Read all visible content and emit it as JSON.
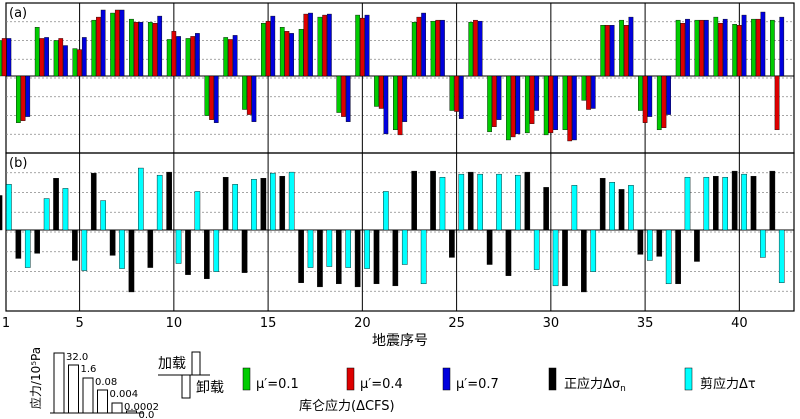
{
  "chart_data": [
    {
      "panel_label": "(a)",
      "type": "bar",
      "x": [
        1,
        2,
        3,
        4,
        5,
        6,
        7,
        8,
        9,
        10,
        11,
        12,
        13,
        14,
        15,
        16,
        17,
        18,
        19,
        20,
        21,
        22,
        23,
        24,
        25,
        26,
        27,
        28,
        29,
        30,
        31,
        32,
        33,
        34,
        35,
        36,
        37,
        38,
        39,
        40,
        41,
        42
      ],
      "series": [
        {
          "name": "μ′=0.1",
          "color": "#00cc00",
          "values": [
            3.5,
            -4.6,
            4.8,
            3.5,
            2.7,
            5.5,
            6.2,
            5.6,
            5.3,
            3.6,
            3.7,
            -3.9,
            3.8,
            -3.3,
            5.2,
            4.8,
            4.6,
            5.8,
            -3.6,
            6.0,
            -3.0,
            -5.3,
            5.3,
            5.4,
            -3.4,
            5.3,
            -5.5,
            -6.3,
            -5.6,
            -5.8,
            -5.3,
            -2.4,
            5.0,
            5.5,
            -3.4,
            -5.3,
            5.5,
            5.5,
            5.8,
            5.1,
            5.6,
            5.5
          ]
        },
        {
          "name": "μ′=0.4",
          "color": "#dd0000",
          "values": [
            3.7,
            -4.4,
            3.7,
            3.7,
            2.6,
            5.8,
            6.5,
            5.3,
            5.2,
            4.4,
            3.9,
            -4.3,
            3.6,
            -3.8,
            5.4,
            4.4,
            6.1,
            6.0,
            -4.0,
            5.7,
            -3.2,
            -5.8,
            5.8,
            5.5,
            -3.5,
            5.5,
            -5.0,
            -6.0,
            -4.7,
            -5.6,
            -6.4,
            -3.3,
            5.0,
            5.0,
            -4.6,
            -5.1,
            5.2,
            5.5,
            5.2,
            5.0,
            5.6,
            -5.3
          ]
        },
        {
          "name": "μ′=0.7",
          "color": "#0000dd",
          "values": [
            3.7,
            -4.0,
            3.8,
            3.0,
            3.8,
            6.5,
            6.5,
            5.3,
            5.9,
            3.9,
            4.2,
            -4.6,
            4.0,
            -4.5,
            5.9,
            4.2,
            6.2,
            6.1,
            -4.5,
            6.0,
            -5.7,
            -4.5,
            6.2,
            5.5,
            -4.2,
            5.4,
            -4.3,
            -5.7,
            -3.4,
            -5.3,
            -6.3,
            -3.2,
            5.0,
            5.8,
            -4.0,
            -3.8,
            5.6,
            5.5,
            5.6,
            6.0,
            6.3,
            5.8
          ]
        }
      ]
    },
    {
      "panel_label": "(b)",
      "type": "bar",
      "x": [
        1,
        2,
        3,
        4,
        5,
        6,
        7,
        8,
        9,
        10,
        11,
        12,
        13,
        14,
        15,
        16,
        17,
        18,
        19,
        20,
        21,
        22,
        23,
        24,
        25,
        26,
        27,
        28,
        29,
        30,
        31,
        32,
        33,
        34,
        35,
        36,
        37,
        38,
        39,
        40,
        41,
        42
      ],
      "series": [
        {
          "name": "正应力Δσn",
          "color": "#000000",
          "values": [
            3.4,
            -2.8,
            -2.3,
            5.1,
            -3.0,
            5.6,
            -2.5,
            -6.1,
            -3.7,
            5.7,
            -4.4,
            -4.8,
            5.2,
            -4.2,
            5.1,
            5.3,
            -5.2,
            -5.6,
            -5.3,
            -5.6,
            -5.3,
            -5.5,
            5.8,
            5.8,
            -2.7,
            5.7,
            -3.4,
            -4.5,
            5.7,
            4.2,
            -5.5,
            -6.1,
            5.1,
            4.0,
            -2.4,
            -2.6,
            -5.3,
            -3.1,
            5.3,
            5.8,
            5.3,
            5.8
          ]
        },
        {
          "name": "剪应力Δτ",
          "color": "#00ffff",
          "values": [
            4.5,
            -3.7,
            3.1,
            4.1,
            -4.0,
            2.9,
            -3.8,
            6.1,
            5.4,
            -3.3,
            3.8,
            -4.1,
            4.5,
            5.0,
            5.6,
            5.7,
            -3.7,
            -3.6,
            -3.7,
            -3.8,
            3.8,
            -3.4,
            -5.3,
            5.2,
            5.5,
            5.5,
            5.5,
            5.4,
            -3.9,
            -5.5,
            4.4,
            -4.1,
            4.7,
            4.4,
            -3.0,
            -5.3,
            5.2,
            5.2,
            5.2,
            5.5,
            -2.7,
            -5.2
          ]
        }
      ]
    }
  ],
  "x_ticks": [
    "1",
    "5",
    "10",
    "15",
    "20",
    "25",
    "30",
    "35",
    "40"
  ],
  "xlabel": "地震序号",
  "legend": {
    "stress_axis_label": "应力/10⁵Pa",
    "stress_scale_labels": [
      "32.0",
      "1.6",
      "0.08",
      "0.004",
      "0.0002",
      "0.0"
    ],
    "load_label": "加载",
    "unload_label": "卸载",
    "mu01": "μ′=0.1",
    "mu04": "μ′=0.4",
    "mu07": "μ′=0.7",
    "normal_stress": "正应力Δσ",
    "normal_sub": "n",
    "shear_stress": "剪应力Δτ",
    "cfs_label": "库仑应力(ΔCFS)"
  },
  "colors": {
    "green": "#00cc00",
    "red": "#dd0000",
    "blue": "#0000dd",
    "black": "#000000",
    "cyan": "#00ffff"
  }
}
